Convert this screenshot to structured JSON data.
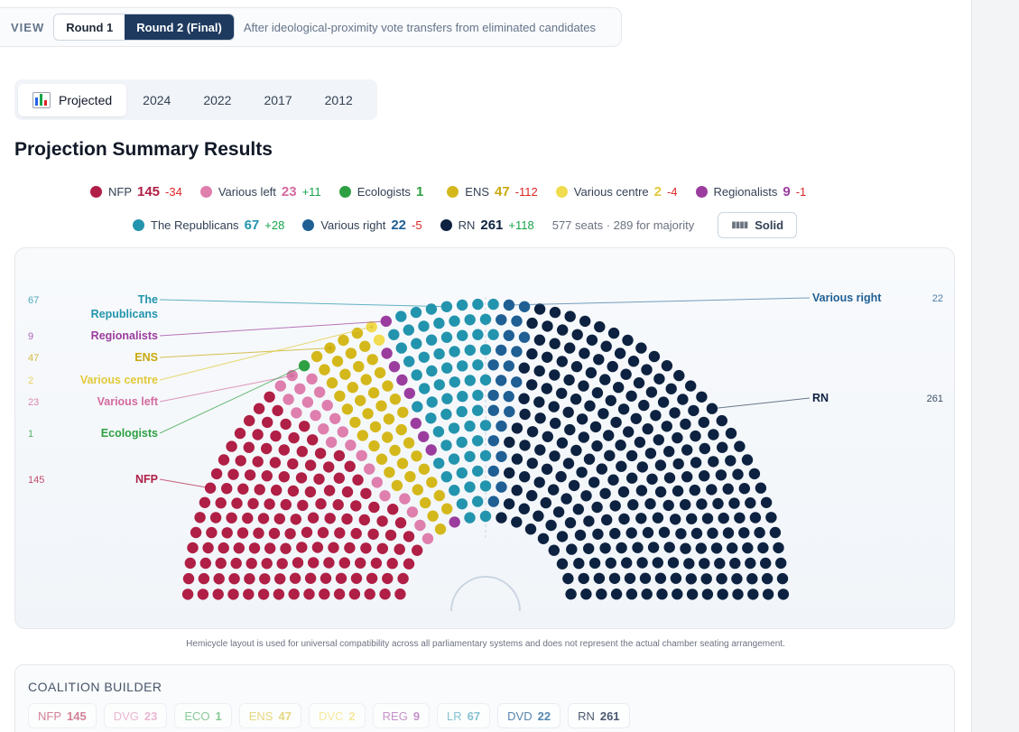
{
  "view": {
    "label": "VIEW",
    "rounds": [
      "Round 1",
      "Round 2 (Final)"
    ],
    "active_round": 1,
    "note": "After ideological-proximity vote transfers from eliminated candidates"
  },
  "tabs": {
    "items": [
      "Projected",
      "2024",
      "2022",
      "2017",
      "2012"
    ],
    "active": 0,
    "projected_icon": "bar-chart-icon"
  },
  "title": "Projection Summary Results",
  "legend": [
    {
      "name": "NFP",
      "count": "145",
      "delta": "-34",
      "color": "#b01f45"
    },
    {
      "name": "Various left",
      "count": "23",
      "delta": "+11",
      "color": "#de7fae"
    },
    {
      "name": "Ecologists",
      "count": "1",
      "delta": "",
      "color": "#2ea043"
    },
    {
      "name": "ENS",
      "count": "47",
      "delta": "-112",
      "color": "#d4b81b"
    },
    {
      "name": "Various centre",
      "count": "2",
      "delta": "-4",
      "color": "#f0dc4e"
    },
    {
      "name": "Regionalists",
      "count": "9",
      "delta": "-1",
      "color": "#9b3d9e"
    },
    {
      "name": "The Republicans",
      "count": "67",
      "delta": "+28",
      "color": "#2394ad"
    },
    {
      "name": "Various right",
      "count": "22",
      "delta": "-5",
      "color": "#1f5f94"
    },
    {
      "name": "RN",
      "count": "261",
      "delta": "+118",
      "color": "#0d2240"
    }
  ],
  "seat_info": "577 seats · 289 for majority",
  "solid_button": "Solid",
  "chart_data": {
    "type": "hemicycle",
    "total_seats": 577,
    "majority": 289,
    "order": [
      "NFP",
      "Various left",
      "Ecologists",
      "ENS",
      "Various centre",
      "Regionalists",
      "The Republicans",
      "Various right",
      "RN"
    ],
    "seats": [
      145,
      23,
      1,
      47,
      2,
      9,
      67,
      22,
      261
    ],
    "colors": [
      "#b01f45",
      "#de7fae",
      "#2ea043",
      "#d4b81b",
      "#f0dc4e",
      "#9b3d9e",
      "#2394ad",
      "#1f5f94",
      "#0d2240"
    ],
    "label_colors": [
      "#b01f45",
      "#d46a9f",
      "#2ea043",
      "#c9a90e",
      "#e3c93a",
      "#9b3d9e",
      "#2394ad",
      "#1f5f94",
      "#0d2240"
    ],
    "left_callouts": [
      {
        "party": "The Republicans",
        "lines": [
          "The",
          "Republicans"
        ],
        "count": "67"
      },
      {
        "party": "Regionalists",
        "lines": [
          "Regionalists"
        ],
        "count": "9"
      },
      {
        "party": "ENS",
        "lines": [
          "ENS"
        ],
        "count": "47"
      },
      {
        "party": "Various centre",
        "lines": [
          "Various centre"
        ],
        "count": "2"
      },
      {
        "party": "Various left",
        "lines": [
          "Various left"
        ],
        "count": "23"
      },
      {
        "party": "Ecologists",
        "lines": [
          "Ecologists"
        ],
        "count": "1"
      },
      {
        "party": "NFP",
        "lines": [
          "NFP"
        ],
        "count": "145"
      }
    ],
    "right_callouts": [
      {
        "party": "Various right",
        "lines": [
          "Various right"
        ],
        "count": "22"
      },
      {
        "party": "RN",
        "lines": [
          "RN"
        ],
        "count": "261"
      }
    ]
  },
  "disclaimer": "Hemicycle layout is used for universal compatibility across all parliamentary systems and does not represent the actual chamber seating arrangement.",
  "coalition": {
    "title": "COALITION BUILDER",
    "chips": [
      {
        "code": "NFP",
        "count": "145",
        "color": "#b01f45"
      },
      {
        "code": "DVG",
        "count": "23",
        "color": "#de7fae"
      },
      {
        "code": "ECO",
        "count": "1",
        "color": "#2ea043"
      },
      {
        "code": "ENS",
        "count": "47",
        "color": "#d4b81b"
      },
      {
        "code": "DVC",
        "count": "2",
        "color": "#f0dc4e"
      },
      {
        "code": "REG",
        "count": "9",
        "color": "#9b3d9e"
      },
      {
        "code": "LR",
        "count": "67",
        "color": "#2394ad"
      },
      {
        "code": "DVD",
        "count": "22",
        "color": "#1f5f94"
      },
      {
        "code": "RN",
        "count": "261",
        "color": "#0d2240"
      }
    ]
  }
}
